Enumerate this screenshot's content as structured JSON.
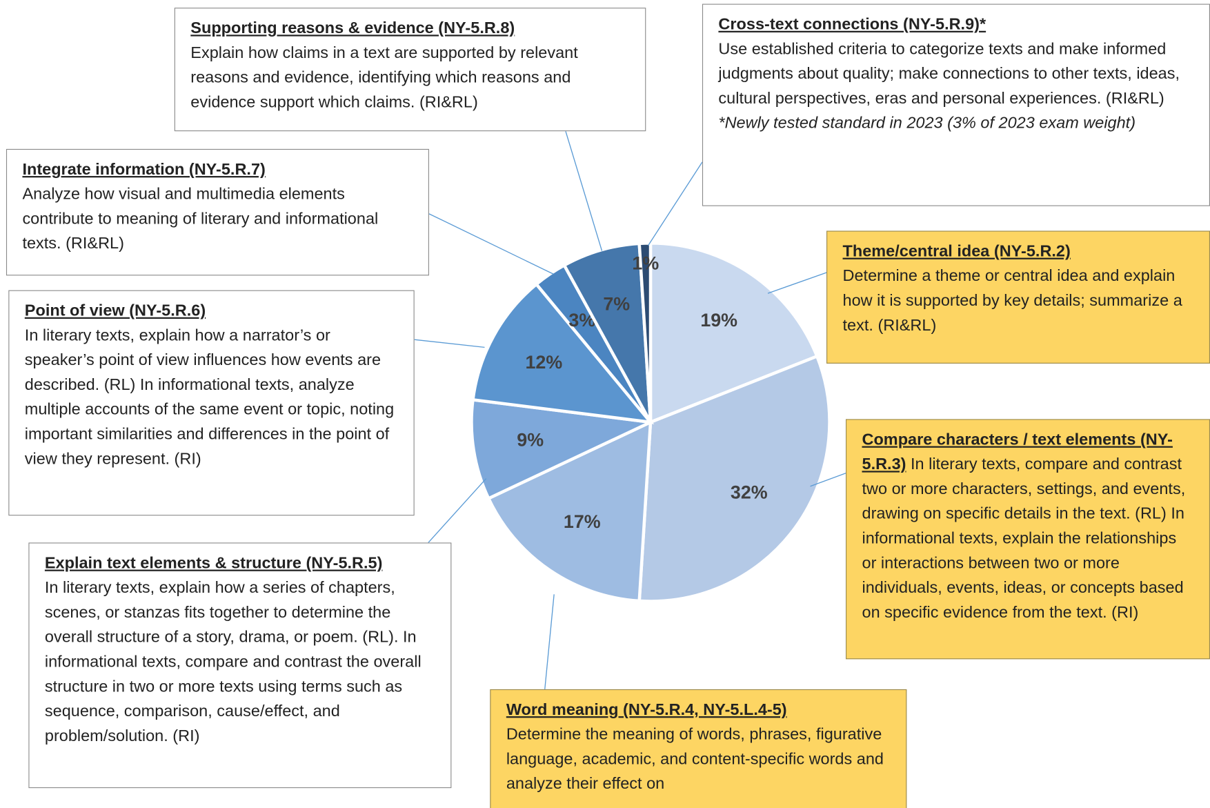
{
  "chart_data": {
    "type": "pie",
    "categories": [
      "Theme/central idea (NY-5.R.2)",
      "Compare characters / text elements (NY-5.R.3)",
      "Word meaning (NY-5.R.4, NY-5.L.4-5)",
      "Explain text elements & structure (NY-5.R.5)",
      "Point of view (NY-5.R.6)",
      "Integrate information (NY-5.R.7)",
      "Supporting reasons & evidence (NY-5.R.8)",
      "Cross-text connections (NY-5.R.9)*"
    ],
    "descriptions": [
      "Determine a theme or central idea and explain how it is supported by key details; summarize a text. (RI&RL)",
      "In literary texts, compare and contrast two or more characters, settings, and events, drawing on specific details in the text. (RL)  In informational texts, explain the relationships or interactions between two or more individuals, events, ideas, or concepts based on specific evidence from the text. (RI)",
      "Determine the meaning of words, phrases, figurative language, academic, and content-specific words and analyze their effect on",
      "In literary texts, explain how a series of chapters, scenes, or stanzas fits together to determine the overall structure of a story, drama, or poem. (RL).  In informational texts, compare and contrast the overall structure in two or more texts using terms such as sequence, comparison, cause/effect, and problem/solution. (RI)",
      "In literary texts, explain how a narrator’s or speaker’s point of view influences how events are described. (RL)  In informational texts, analyze multiple accounts of the same event or topic, noting important similarities and differences in the point of view they represent. (RI)",
      "Analyze how visual and multimedia elements contribute to meaning of literary and informational texts. (RI&RL)",
      "Explain how claims in a text are supported by relevant reasons and evidence, identifying which reasons and evidence support which claims. (RI&RL)",
      "Use established criteria to categorize texts and make informed judgments about quality; make connections to other texts, ideas, cultural perspectives, eras and personal experiences. (RI&RL)"
    ],
    "annotation": "*Newly tested standard in 2023 (3% of 2023 exam weight)",
    "values": [
      19,
      32,
      17,
      9,
      12,
      3,
      7,
      1
    ],
    "value_labels": [
      "19%",
      "32%",
      "17%",
      "9%",
      "12%",
      "3%",
      "7%",
      "1%"
    ],
    "colors": [
      "#c9d9ef",
      "#b4c9e6",
      "#9ebce2",
      "#7ea8da",
      "#5b95cf",
      "#4b85c1",
      "#4577ab",
      "#2c4b72"
    ]
  }
}
